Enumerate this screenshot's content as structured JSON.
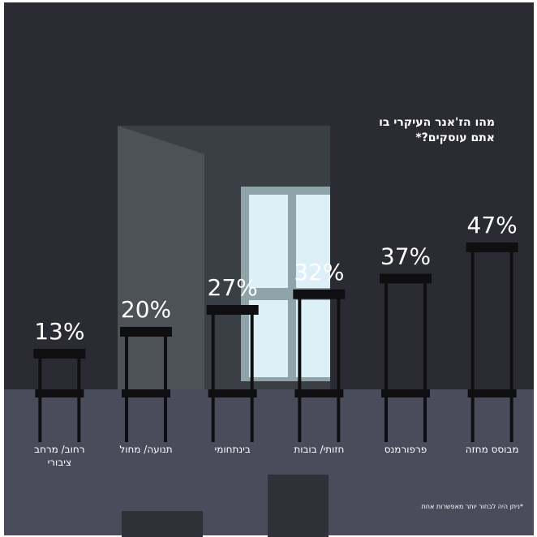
{
  "chart_data": {
    "type": "bar",
    "title": "מהו הז'אנר העיקרי בו אתם עוסקים?*",
    "footnote": "*ניתן היה לבחור יותר מאפשרות אחת",
    "categories": [
      "רחוב/ מרחב ציבורי",
      "תנועה/ מחול",
      "בינתחומי",
      "חזותי/ בובות",
      "פרפורמנס",
      "מבוסס מחזה"
    ],
    "values": [
      13,
      20,
      27,
      32,
      37,
      47
    ],
    "value_labels": [
      "13%",
      "20%",
      "27%",
      "32%",
      "37%",
      "47%"
    ],
    "color": "#0f0f12",
    "ylim": [
      0,
      100
    ]
  }
}
